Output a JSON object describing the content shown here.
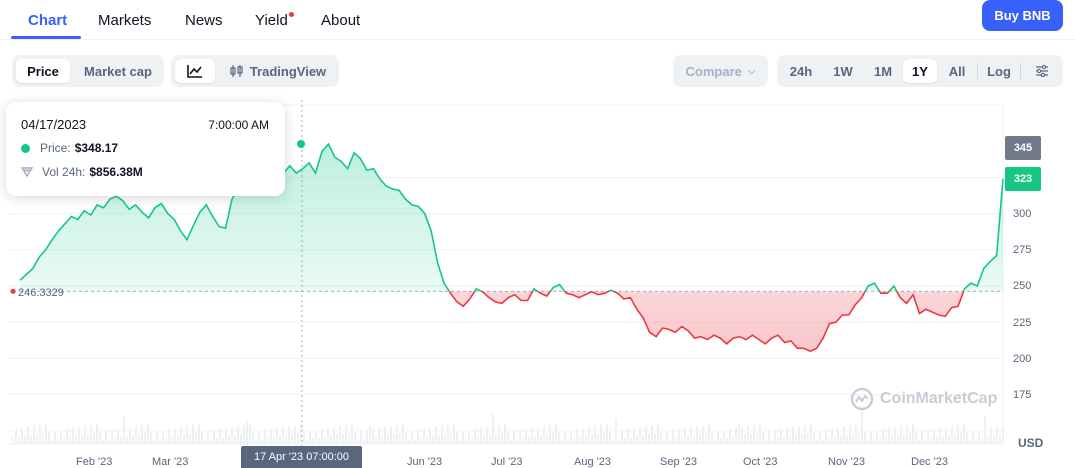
{
  "nav": {
    "tabs": [
      {
        "label": "Chart",
        "active": true
      },
      {
        "label": "Markets"
      },
      {
        "label": "News"
      },
      {
        "label": "Yield",
        "dot": true
      },
      {
        "label": "About"
      }
    ],
    "buy_label": "Buy BNB"
  },
  "controls": {
    "price_label": "Price",
    "marketcap_label": "Market cap",
    "tradingview_label": "TradingView",
    "compare_label": "Compare",
    "ranges": [
      "24h",
      "1W",
      "1M",
      "1Y",
      "All"
    ],
    "active_range": "1Y",
    "log_label": "Log"
  },
  "tooltip": {
    "date": "04/17/2023",
    "time": "7:00:00 AM",
    "price_label": "Price:",
    "price_value": "$348.17",
    "vol_label": "Vol 24h:",
    "vol_value": "$856.38M"
  },
  "axis": {
    "current_price_tag": "323",
    "hover_price_tag": "345",
    "reference_label": "246.3329",
    "hover_x_label": "17 Apr '23 07:00:00",
    "currency": "USD",
    "y_ticks": [
      "300",
      "275",
      "250",
      "225",
      "200",
      "175"
    ],
    "x_ticks": [
      "Feb '23",
      "Mar '23",
      "Jun '23",
      "Jul '23",
      "Aug '23",
      "Sep '23",
      "Oct '23",
      "Nov '23",
      "Dec '23"
    ]
  },
  "watermark": "CoinMarketCap",
  "colors": {
    "accent": "#3861fb",
    "up": "#16c784",
    "down": "#ea3943"
  },
  "chart_data": {
    "type": "area",
    "reference": 246.33,
    "ylim": [
      165,
      360
    ],
    "y_ticks": [
      175,
      200,
      225,
      250,
      275,
      300
    ],
    "x_ticks": [
      "Feb '23",
      "Mar '23",
      "Jun '23",
      "Jul '23",
      "Aug '23",
      "Sep '23",
      "Oct '23",
      "Nov '23",
      "Dec '23"
    ],
    "series": [
      {
        "values": [
          254,
          258,
          262,
          270,
          275,
          282,
          288,
          293,
          298,
          296,
          302,
          299,
          306,
          304,
          310,
          312,
          309,
          303,
          306,
          301,
          297,
          304,
          307,
          300,
          296,
          288,
          282,
          292,
          301,
          306,
          298,
          291,
          290,
          310,
          318,
          315,
          322,
          318,
          326,
          322,
          319,
          328,
          333,
          328,
          331,
          335,
          328,
          343,
          348,
          339,
          336,
          331,
          342,
          338,
          330,
          331,
          324,
          319,
          317,
          316,
          310,
          306,
          305,
          300,
          288,
          266,
          252,
          245,
          239,
          236,
          241,
          248,
          246,
          242,
          239,
          238,
          242,
          244,
          240,
          240,
          248,
          245,
          243,
          249,
          251,
          245,
          244,
          242,
          244,
          246,
          244,
          245,
          247,
          245,
          241,
          242,
          234,
          228,
          218,
          215,
          221,
          220,
          218,
          222,
          219,
          214,
          215,
          213,
          216,
          214,
          210,
          214,
          215,
          213,
          216,
          213,
          210,
          214,
          216,
          211,
          212,
          207,
          207,
          205,
          207,
          214,
          224,
          225,
          230,
          230,
          237,
          242,
          250,
          252,
          245,
          245,
          250,
          242,
          238,
          244,
          231,
          234,
          232,
          230,
          229,
          235,
          236,
          248,
          252,
          250,
          262,
          267,
          271,
          324
        ]
      }
    ]
  }
}
